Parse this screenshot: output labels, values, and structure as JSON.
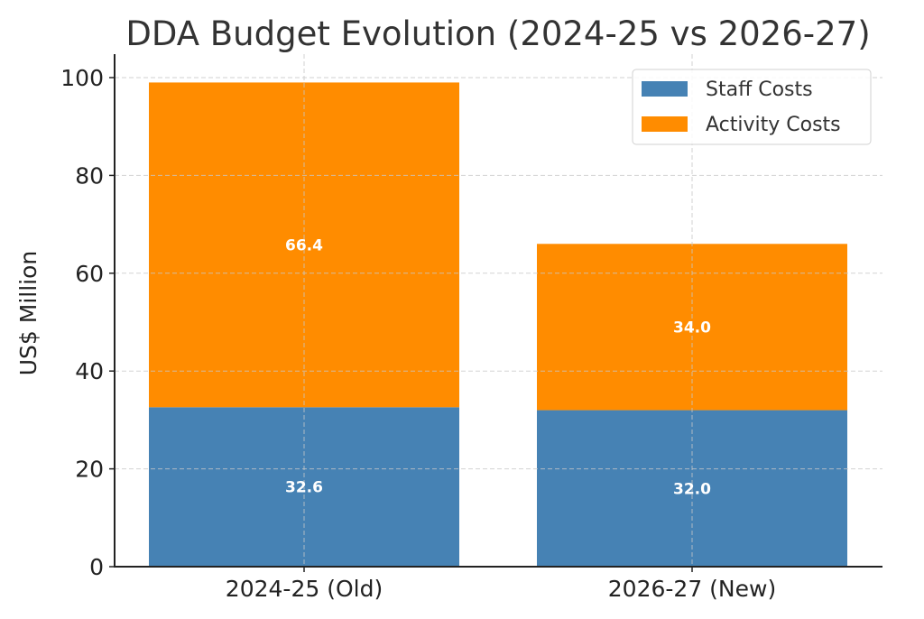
{
  "chart_data": {
    "type": "bar",
    "stacked": true,
    "title": "DDA Budget Evolution (2024-25 vs 2026-27)",
    "xlabel": "",
    "ylabel": "US$ Million",
    "categories": [
      "2024-25 (Old)",
      "2026-27 (New)"
    ],
    "series": [
      {
        "name": "Staff Costs",
        "color": "#4682B4",
        "values": [
          32.6,
          32.0
        ],
        "labels": [
          "32.6",
          "32.0"
        ]
      },
      {
        "name": "Activity Costs",
        "color": "#FF8C00",
        "values": [
          66.4,
          34.0
        ],
        "labels": [
          "66.4",
          "34.0"
        ]
      }
    ],
    "ylim": [
      0,
      104
    ],
    "yticks": [
      0,
      20,
      40,
      60,
      80,
      100
    ],
    "ytick_labels": [
      "0",
      "20",
      "40",
      "60",
      "80",
      "100"
    ],
    "grid": true,
    "legend": {
      "position": "top-right",
      "entries": [
        "Staff Costs",
        "Activity Costs"
      ]
    }
  }
}
